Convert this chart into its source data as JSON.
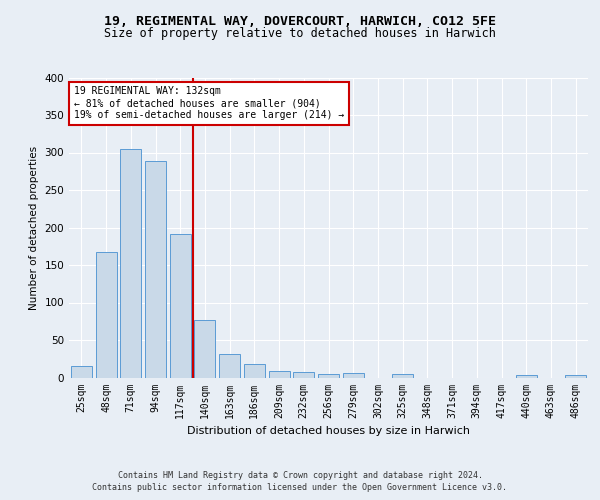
{
  "title1": "19, REGIMENTAL WAY, DOVERCOURT, HARWICH, CO12 5FE",
  "title2": "Size of property relative to detached houses in Harwich",
  "xlabel": "Distribution of detached houses by size in Harwich",
  "ylabel": "Number of detached properties",
  "categories": [
    "25sqm",
    "48sqm",
    "71sqm",
    "94sqm",
    "117sqm",
    "140sqm",
    "163sqm",
    "186sqm",
    "209sqm",
    "232sqm",
    "256sqm",
    "279sqm",
    "302sqm",
    "325sqm",
    "348sqm",
    "371sqm",
    "394sqm",
    "417sqm",
    "440sqm",
    "463sqm",
    "486sqm"
  ],
  "values": [
    15,
    168,
    305,
    289,
    191,
    77,
    32,
    18,
    9,
    8,
    5,
    6,
    0,
    5,
    0,
    0,
    0,
    0,
    3,
    0,
    3
  ],
  "bar_color": "#c9d9e8",
  "bar_edge_color": "#5b9bd5",
  "vline_color": "#cc0000",
  "annotation_text": "19 REGIMENTAL WAY: 132sqm\n← 81% of detached houses are smaller (904)\n19% of semi-detached houses are larger (214) →",
  "annotation_box_color": "white",
  "annotation_box_edge": "#cc0000",
  "ylim": [
    0,
    400
  ],
  "yticks": [
    0,
    50,
    100,
    150,
    200,
    250,
    300,
    350,
    400
  ],
  "bg_color": "#e8eef5",
  "plot_bg_color": "#e8eef5",
  "footer1": "Contains HM Land Registry data © Crown copyright and database right 2024.",
  "footer2": "Contains public sector information licensed under the Open Government Licence v3.0.",
  "title_fontsize": 9.5,
  "subtitle_fontsize": 8.5
}
